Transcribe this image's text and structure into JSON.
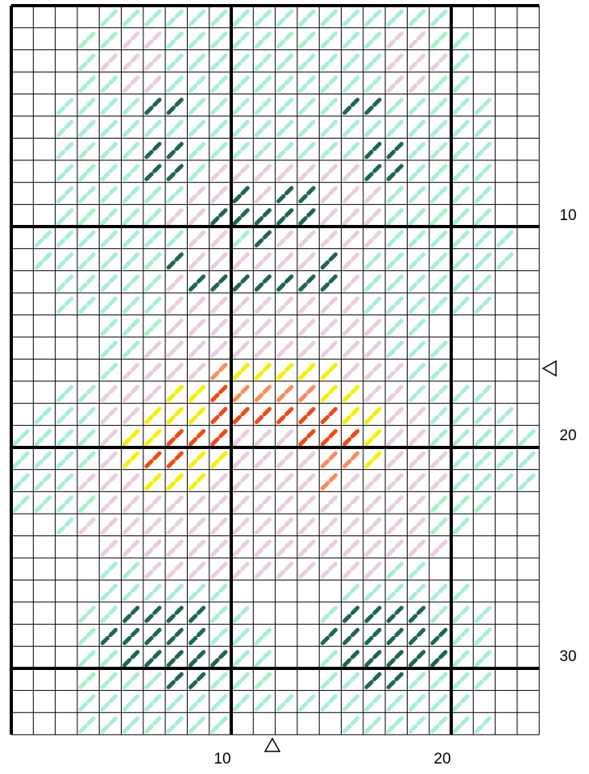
{
  "axis_labels": {
    "rows": [
      "10",
      "20",
      "30"
    ],
    "columns": [
      "10",
      "20"
    ]
  }
}
